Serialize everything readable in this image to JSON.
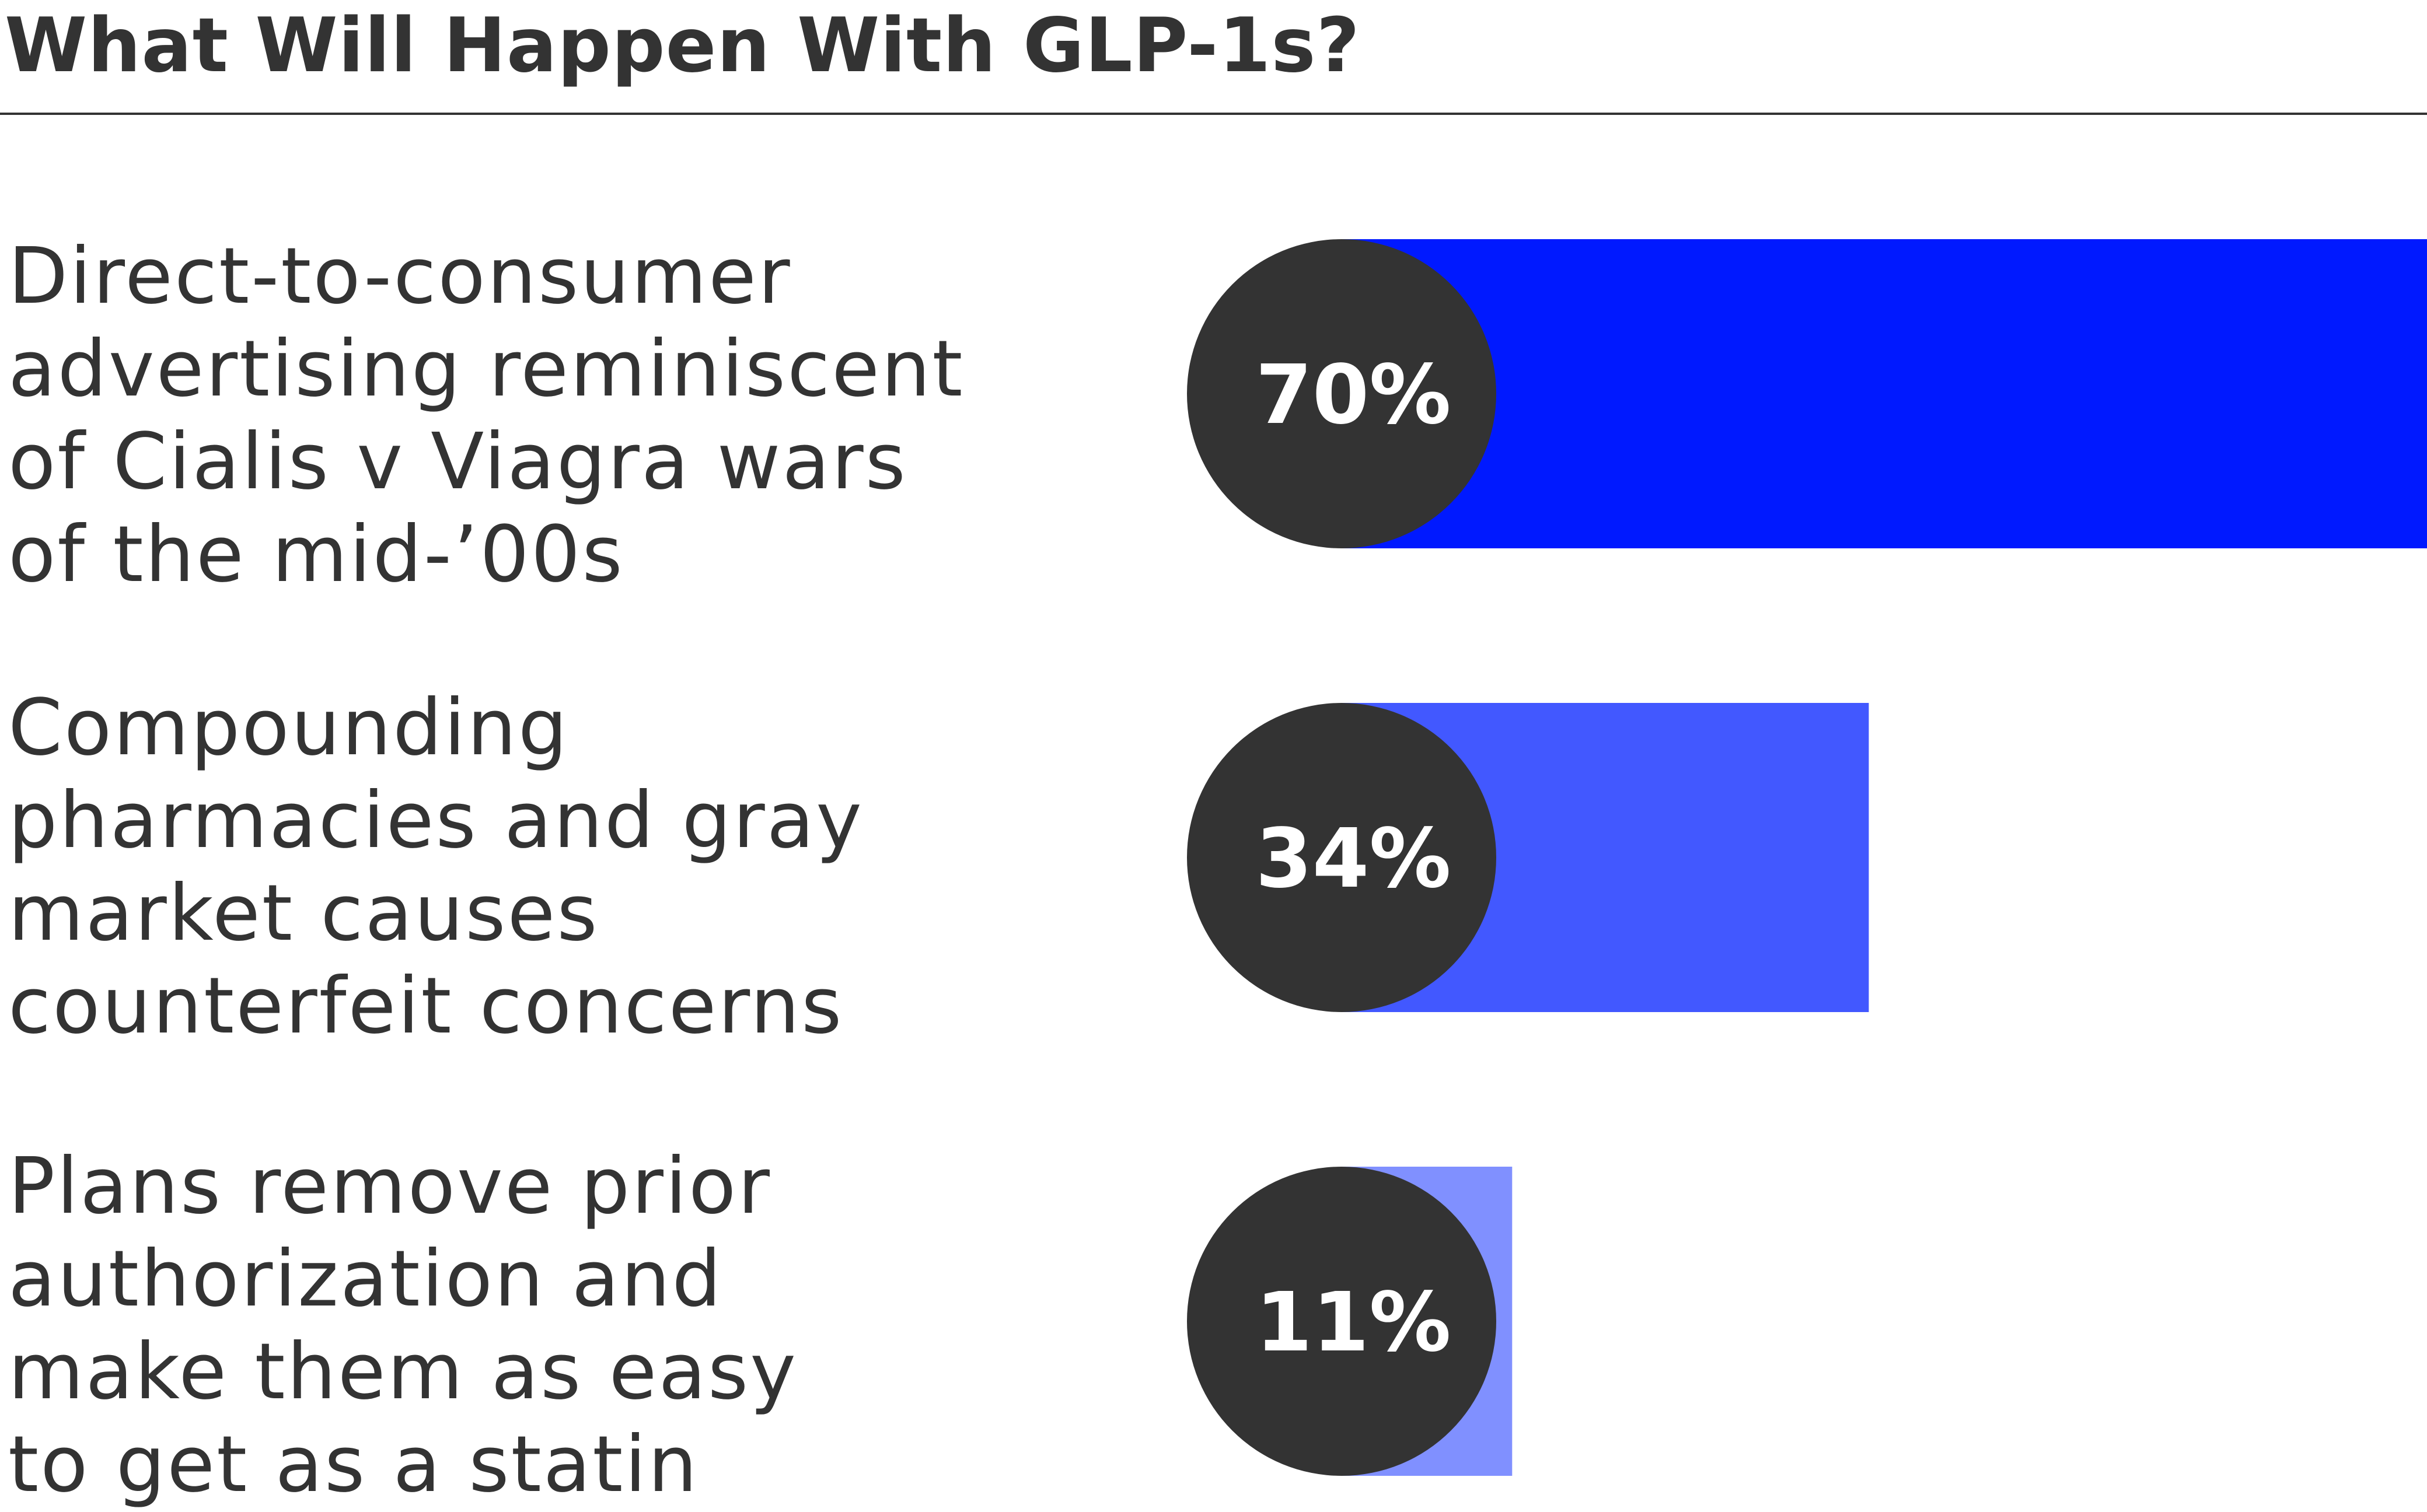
{
  "chart_data": {
    "type": "bar",
    "orientation": "horizontal",
    "title": "What Will Happen With GLP-1s?",
    "categories": [
      "Direct-to-consumer\nadvertising reminiscent\nof Cialis v Viagra wars\nof the mid-’00s",
      "Compounding\npharmacies and gray\nmarket causes\ncounterfeit concerns",
      "Plans remove prior\nauthorization and\nmake them as easy\nto get as a statin"
    ],
    "values": [
      70,
      34,
      11
    ],
    "value_labels": [
      "70%",
      "34%",
      "11%"
    ],
    "unit": "%",
    "xlim": [
      0,
      70
    ],
    "grid": false,
    "legend": "none",
    "bar_colors": [
      "#0019ff",
      "#4258ff",
      "#8090ff"
    ],
    "badge_color": "#333333",
    "text_color": "#333333"
  }
}
